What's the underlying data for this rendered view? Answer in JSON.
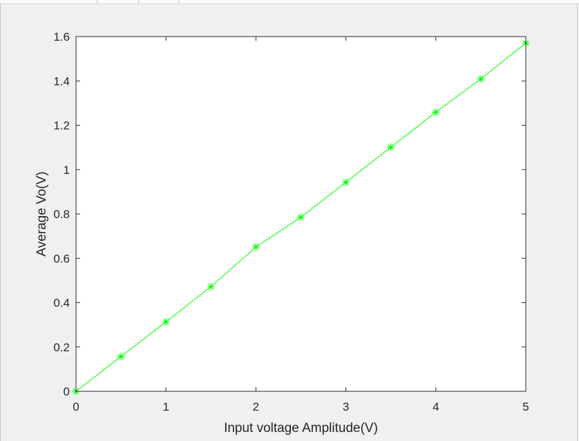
{
  "window": {
    "background": "#f0f0f0",
    "plot_background": "#ffffff"
  },
  "chart_data": {
    "type": "line",
    "title": "",
    "xlabel": "Input voltage Amplitude(V)",
    "ylabel": "Average Vo(V)",
    "xlim": [
      0,
      5
    ],
    "ylim": [
      0,
      1.6
    ],
    "xticks": [
      0,
      1,
      2,
      3,
      4,
      5
    ],
    "yticks": [
      0,
      0.2,
      0.4,
      0.6,
      0.8,
      1,
      1.2,
      1.4,
      1.6
    ],
    "xtick_labels": [
      "0",
      "1",
      "2",
      "3",
      "4",
      "5"
    ],
    "ytick_labels": [
      "0",
      "0.2",
      "0.4",
      "0.6",
      "0.8",
      "1",
      "1.2",
      "1.4",
      "1.6"
    ],
    "grid": false,
    "legend": null,
    "series": [
      {
        "name": "Average Vo",
        "color": "#00ff00",
        "marker": "asterisk",
        "line": "solid",
        "x": [
          0,
          0.5,
          1,
          1.5,
          2,
          2.5,
          3,
          3.5,
          4,
          4.5,
          5
        ],
        "y": [
          0,
          0.157,
          0.313,
          0.472,
          0.651,
          0.785,
          0.943,
          1.101,
          1.259,
          1.409,
          1.571
        ]
      }
    ]
  }
}
